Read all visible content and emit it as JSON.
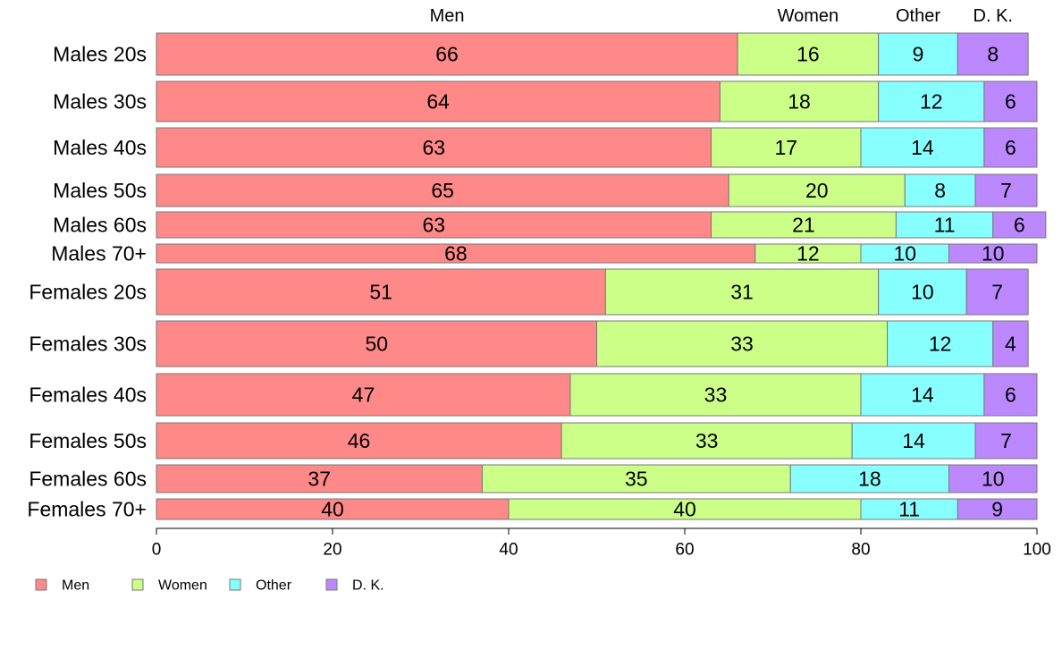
{
  "chart_data": {
    "type": "bar",
    "orientation": "horizontal",
    "stacked": true,
    "xlim": [
      0,
      100
    ],
    "xticks": [
      0,
      20,
      40,
      60,
      80,
      100
    ],
    "categories": [
      "Males 20s",
      "Males 30s",
      "Males 40s",
      "Males 50s",
      "Males 60s",
      "Males 70+",
      "Females 20s",
      "Females 30s",
      "Females 40s",
      "Females 50s",
      "Females 60s",
      "Females 70+"
    ],
    "series": [
      {
        "name": "Men",
        "color": "#ff8888",
        "values": [
          66,
          64,
          63,
          65,
          63,
          68,
          51,
          50,
          47,
          46,
          37,
          40
        ]
      },
      {
        "name": "Women",
        "color": "#ccff88",
        "values": [
          16,
          18,
          17,
          20,
          21,
          12,
          31,
          33,
          33,
          33,
          35,
          40
        ]
      },
      {
        "name": "Other",
        "color": "#88ffff",
        "values": [
          9,
          12,
          14,
          8,
          11,
          10,
          10,
          12,
          14,
          14,
          18,
          11
        ]
      },
      {
        "name": "D. K.",
        "color": "#bb88ff",
        "values": [
          8,
          6,
          6,
          7,
          6,
          10,
          7,
          4,
          6,
          7,
          10,
          9
        ]
      }
    ],
    "legend_position": "bottom-left",
    "grid": false
  }
}
